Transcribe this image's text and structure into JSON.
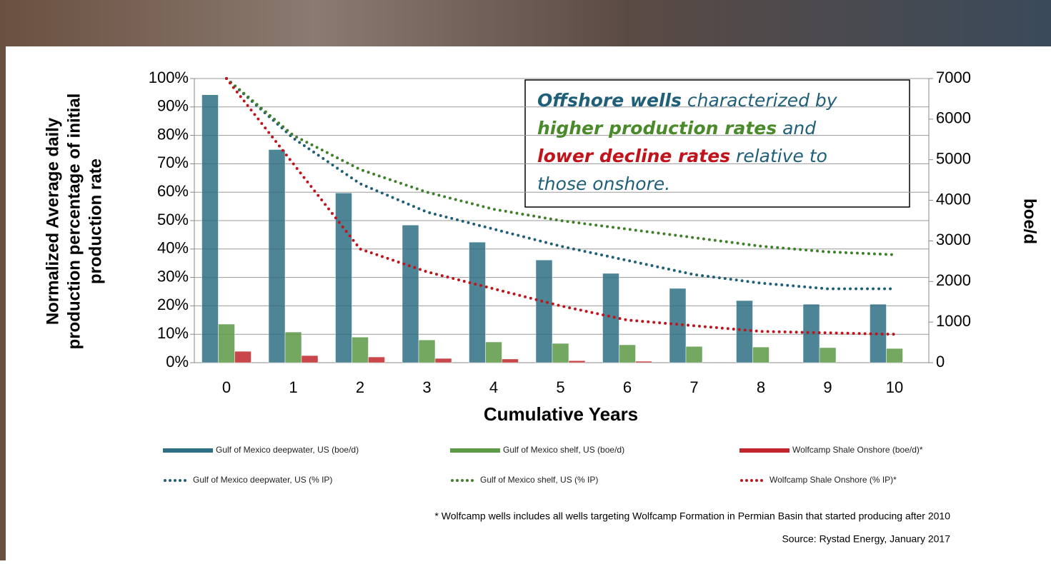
{
  "chart_data": {
    "type": "bar",
    "categories": [
      "0",
      "1",
      "2",
      "3",
      "4",
      "5",
      "6",
      "7",
      "8",
      "9",
      "10"
    ],
    "xlabel": "Cumulative Years",
    "ylabel": [
      "Normalized Average daily",
      "production percentage of initial",
      "production rate"
    ],
    "y2label": "boe/d",
    "ylim": [
      0,
      100
    ],
    "yticks": [
      {
        "value": 0,
        "label": "0%"
      },
      {
        "value": 10,
        "label": "10%"
      },
      {
        "value": 20,
        "label": "20%"
      },
      {
        "value": 30,
        "label": "30%"
      },
      {
        "value": 40,
        "label": "40%"
      },
      {
        "value": 50,
        "label": "50%"
      },
      {
        "value": 60,
        "label": "60%"
      },
      {
        "value": 70,
        "label": "70%"
      },
      {
        "value": 80,
        "label": "80%"
      },
      {
        "value": 90,
        "label": "90%"
      },
      {
        "value": 100,
        "label": "100%"
      }
    ],
    "y2lim": [
      0,
      7000
    ],
    "y2ticks": [
      0,
      1000,
      2000,
      3000,
      4000,
      5000,
      6000,
      7000
    ],
    "grid": true,
    "series": [
      {
        "name": "Gulf of Mexico deepwater, US (boe/d)",
        "type": "bar",
        "axis": "y2",
        "color": "#2f6f84",
        "values": [
          6600,
          5250,
          4180,
          3390,
          2970,
          2530,
          2200,
          1830,
          1530,
          1440,
          1440
        ]
      },
      {
        "name": "Gulf of Mexico shelf, US (boe/d)",
        "type": "bar",
        "axis": "y2",
        "color": "#5c9a45",
        "values": [
          950,
          755,
          630,
          560,
          510,
          475,
          440,
          400,
          385,
          370,
          350
        ]
      },
      {
        "name": "Wolfcamp Shale Onshore (boe/d)*",
        "type": "bar",
        "axis": "y2",
        "color": "#c0262c",
        "values": [
          280,
          175,
          140,
          105,
          90,
          50,
          35,
          null,
          null,
          null,
          null
        ]
      },
      {
        "name": "Gulf of Mexico deepwater, US (% IP)",
        "type": "line",
        "color": "#1f5f78",
        "values": [
          100,
          79,
          63,
          53,
          47,
          41,
          36,
          31,
          28,
          26,
          26
        ]
      },
      {
        "name": "Gulf of Mexico shelf, US (% IP)",
        "type": "line",
        "color": "#3f7f2a",
        "values": [
          100,
          80,
          68,
          60,
          54,
          50,
          47,
          44,
          41,
          39,
          38
        ]
      },
      {
        "name": "Wolfcamp Shale Onshore (% IP)*",
        "type": "line",
        "color": "#c0141c",
        "values": [
          100,
          70,
          40,
          32,
          26,
          20,
          15,
          13,
          11,
          10.5,
          10
        ]
      }
    ],
    "annotation": [
      {
        "text": "Offshore wells",
        "color": "#1f5f78",
        "bold": true
      },
      {
        "text": " characterized by",
        "color": "#1f5f78",
        "bold": false
      },
      {
        "text": "higher production rates",
        "color": "#4a8a2a",
        "bold": true
      },
      {
        "text": " and",
        "color": "#1f5f78",
        "bold": false
      },
      {
        "text": "lower decline rates",
        "color": "#c0141c",
        "bold": true
      },
      {
        "text": " relative to",
        "color": "#1f5f78",
        "bold": false
      },
      {
        "text": "those onshore.",
        "color": "#1f5f78",
        "bold": false
      }
    ],
    "footnote": "* Wolfcamp wells includes all wells targeting Wolfcamp Formation in Permian Basin that started producing after 2010",
    "source": "Source: Rystad Energy, January 2017"
  }
}
